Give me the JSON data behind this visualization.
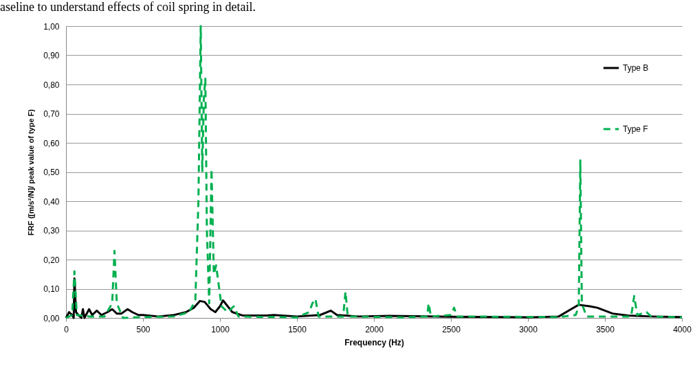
{
  "chart_data": {
    "type": "line",
    "xlabel": "Frequency (Hz)",
    "ylabel": "FRF ([m/s²/N]/ peak value of type F)",
    "annotations": [
      "aseline to understand effects of coil spring in detail."
    ],
    "xlim": [
      0,
      4000
    ],
    "xticks": [
      0,
      500,
      1000,
      1500,
      2000,
      2500,
      3000,
      3500,
      4000
    ],
    "ylim": [
      0,
      1
    ],
    "yticks": [
      {
        "value": 0,
        "label": "0,00"
      },
      {
        "value": 0.1,
        "label": "0,10"
      },
      {
        "value": 0.2,
        "label": "0,20"
      },
      {
        "value": 0.3,
        "label": "0,30"
      },
      {
        "value": 0.4,
        "label": "0,40"
      },
      {
        "value": 0.5,
        "label": "0,50"
      },
      {
        "value": 0.6,
        "label": "0,60"
      },
      {
        "value": 0.7,
        "label": "0,70"
      },
      {
        "value": 0.8,
        "label": "0,80"
      },
      {
        "value": 0.9,
        "label": "0,90"
      },
      {
        "value": 1,
        "label": "1,00"
      }
    ],
    "grid": "y",
    "legend": "top right",
    "marker": "none",
    "series": [
      {
        "name": "Type B",
        "color": "#000000",
        "line_style": "solid",
        "x": [
          0,
          20,
          40,
          50,
          55,
          65,
          80,
          100,
          110,
          120,
          150,
          170,
          200,
          230,
          270,
          300,
          330,
          360,
          400,
          430,
          470,
          500,
          600,
          700,
          780,
          830,
          870,
          900,
          940,
          970,
          1000,
          1020,
          1050,
          1080,
          1150,
          1300,
          1350,
          1500,
          1650,
          1720,
          1760,
          1900,
          2100,
          2500,
          3000,
          3200,
          3280,
          3330,
          3400,
          3450,
          3550,
          3650,
          3800,
          4000
        ],
        "values": [
          0,
          0.02,
          0.01,
          0,
          0.135,
          0.02,
          0.01,
          0,
          0.03,
          0,
          0.03,
          0.01,
          0.025,
          0.01,
          0.02,
          0.03,
          0.015,
          0.015,
          0.03,
          0.02,
          0.01,
          0.01,
          0.005,
          0.01,
          0.02,
          0.035,
          0.058,
          0.055,
          0.03,
          0.02,
          0.04,
          0.06,
          0.04,
          0.02,
          0.008,
          0.008,
          0.01,
          0.005,
          0.01,
          0.025,
          0.01,
          0.005,
          0.007,
          0.004,
          0.002,
          0.005,
          0.03,
          0.045,
          0.04,
          0.035,
          0.015,
          0.008,
          0.005,
          0.003
        ]
      },
      {
        "name": "Type F",
        "color": "#00b050",
        "line_style": "dashed",
        "x": [
          0,
          40,
          55,
          70,
          150,
          250,
          300,
          315,
          330,
          370,
          500,
          700,
          800,
          840,
          860,
          875,
          885,
          895,
          905,
          915,
          930,
          945,
          960,
          975,
          990,
          1010,
          1050,
          1090,
          1120,
          1500,
          1580,
          1600,
          1620,
          1640,
          1800,
          1815,
          1830,
          2200,
          2345,
          2355,
          2370,
          2500,
          2520,
          2540,
          3200,
          3310,
          3330,
          3340,
          3350,
          3380,
          3670,
          3690,
          3710,
          3770,
          3800,
          4000
        ],
        "values": [
          0,
          0.01,
          0.16,
          0.01,
          0.005,
          0.005,
          0.05,
          0.23,
          0.05,
          0,
          0.003,
          0.005,
          0.02,
          0.06,
          0.4,
          1,
          0.5,
          0.75,
          0.82,
          0.3,
          0.05,
          0.51,
          0.15,
          0.18,
          0.12,
          0.04,
          0.02,
          0.04,
          0.005,
          0.002,
          0.02,
          0.05,
          0.065,
          0.005,
          0.005,
          0.09,
          0.005,
          0.002,
          0.005,
          0.05,
          0.005,
          0.01,
          0.035,
          0.005,
          0.003,
          0.01,
          0.04,
          0.54,
          0.05,
          0.005,
          0.005,
          0.075,
          0.01,
          0.02,
          0.005,
          0.002
        ]
      }
    ]
  }
}
